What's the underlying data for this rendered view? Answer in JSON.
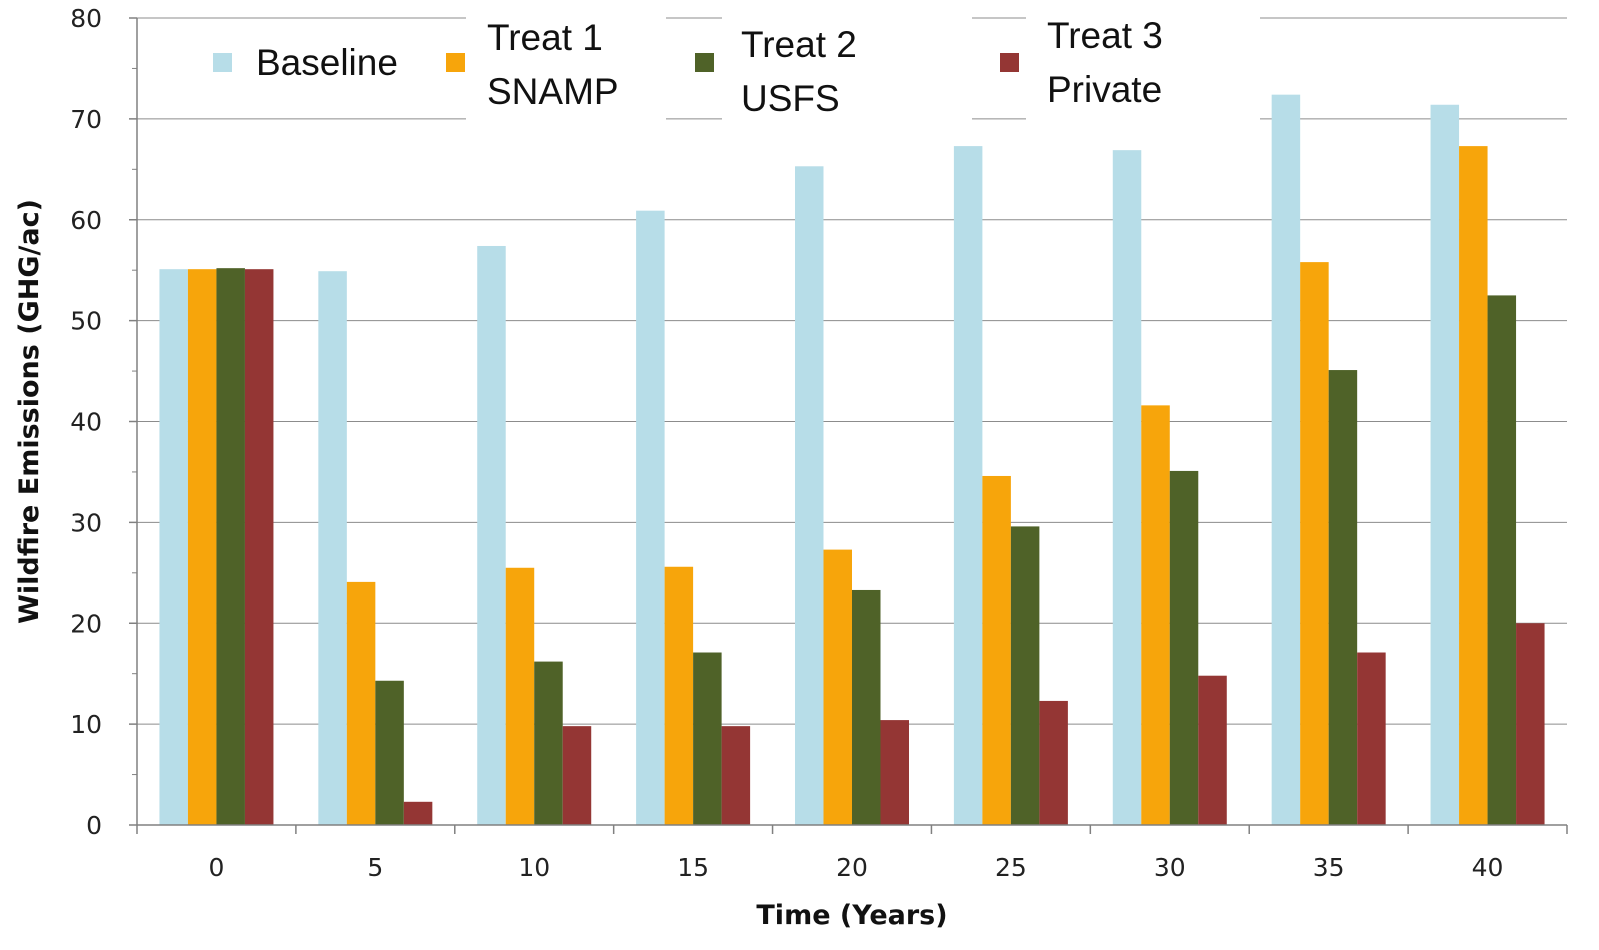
{
  "chart_data": {
    "type": "bar",
    "title": "",
    "xlabel": "Time (Years)",
    "ylabel": "Wildfire Emissions (GHG/ac)",
    "ylim": [
      0,
      80
    ],
    "yticks": [
      0,
      10,
      20,
      30,
      40,
      50,
      60,
      70,
      80
    ],
    "grid": true,
    "legend": "top",
    "categories": [
      "0",
      "5",
      "10",
      "15",
      "20",
      "25",
      "30",
      "35",
      "40"
    ],
    "series": [
      {
        "name": "Baseline",
        "legend_lines": [
          "Baseline"
        ],
        "color": "#b7dde8",
        "values": [
          55.1,
          54.9,
          57.4,
          60.9,
          65.3,
          67.3,
          66.9,
          72.4,
          71.4
        ]
      },
      {
        "name": "Treat 1 SNAMP",
        "legend_lines": [
          "Treat 1",
          "SNAMP"
        ],
        "color": "#f7a50b",
        "values": [
          55.1,
          24.1,
          25.5,
          25.6,
          27.3,
          34.6,
          41.6,
          55.8,
          67.3
        ]
      },
      {
        "name": "Treat 2 USFS",
        "legend_lines": [
          "Treat 2",
          "USFS"
        ],
        "color": "#4f6228",
        "values": [
          55.2,
          14.3,
          16.2,
          17.1,
          23.3,
          29.6,
          35.1,
          45.1,
          52.5
        ]
      },
      {
        "name": "Treat 3 Private",
        "legend_lines": [
          "Treat 3",
          "Private"
        ],
        "color": "#943634",
        "values": [
          55.1,
          2.3,
          9.8,
          9.8,
          10.4,
          12.3,
          14.8,
          17.1,
          20.0
        ]
      }
    ]
  }
}
